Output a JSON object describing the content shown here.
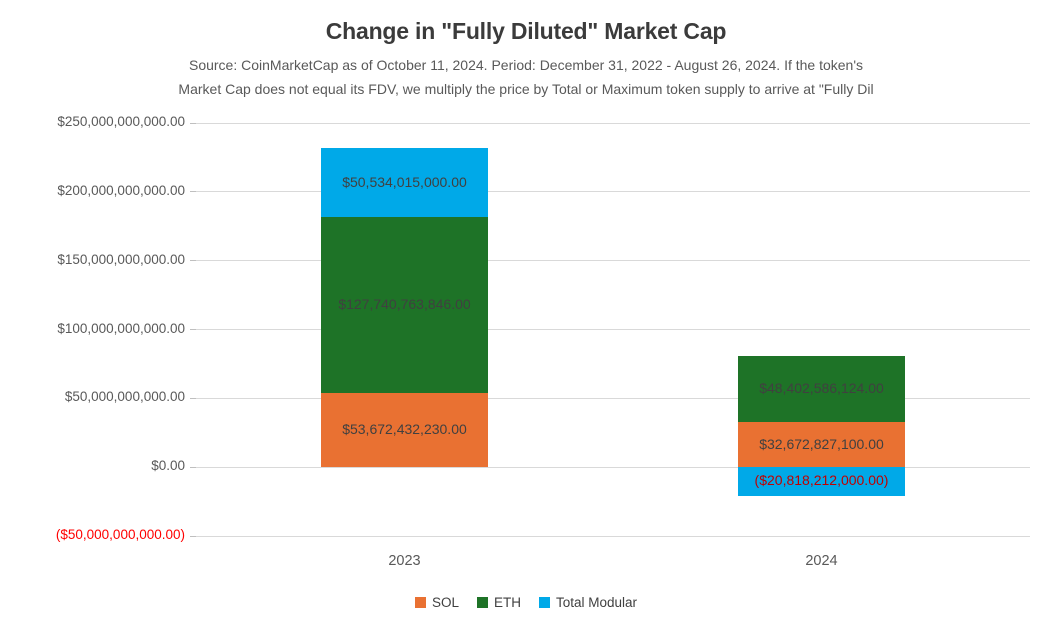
{
  "header": {
    "title": "Change in \"Fully Diluted\" Market Cap",
    "subtitle_line1": "Source: CoinMarketCap as of October 11, 2024. Period: December 31, 2022 - August 26, 2024. If the token's",
    "subtitle_line2": "Market Cap does not equal its FDV, we multiply the price by Total or Maximum token supply to arrive at \"Fully Dil"
  },
  "chart_data": {
    "type": "bar",
    "stacked": true,
    "title": "Change in \"Fully Diluted\" Market Cap",
    "xlabel": "",
    "ylabel": "",
    "categories": [
      "2023",
      "2024"
    ],
    "series": [
      {
        "name": "SOL",
        "color": "#E97132",
        "values": [
          53672432230,
          32672827100
        ],
        "labels": [
          "$53,672,432,230.00",
          "$32,672,827,100.00"
        ]
      },
      {
        "name": "ETH",
        "color": "#1E7327",
        "values": [
          127740763846,
          48402586124
        ],
        "labels": [
          "$127,740,763,846.00",
          "$48,402,586,124.00"
        ]
      },
      {
        "name": "Total Modular",
        "color": "#00A9E8",
        "values": [
          50534015000,
          -20818212000
        ],
        "labels": [
          "$50,534,015,000.00",
          "($20,818,212,000.00)"
        ]
      }
    ],
    "ylim": [
      -50000000000,
      250000000000
    ],
    "y_ticks": [
      {
        "value": 250000000000,
        "label": "$250,000,000,000.00"
      },
      {
        "value": 200000000000,
        "label": "$200,000,000,000.00"
      },
      {
        "value": 150000000000,
        "label": "$150,000,000,000.00"
      },
      {
        "value": 100000000000,
        "label": "$100,000,000,000.00"
      },
      {
        "value": 50000000000,
        "label": "$50,000,000,000.00"
      },
      {
        "value": 0,
        "label": "$0.00"
      },
      {
        "value": -50000000000,
        "label": "($50,000,000,000.00)"
      }
    ],
    "grid": true,
    "legend_position": "bottom",
    "colors": {
      "gridline": "#D9D9D9",
      "axis_label": "#595959",
      "axis_label_negative": "#FF0000",
      "data_label": "#404040",
      "data_label_negative": "#C00000"
    }
  }
}
